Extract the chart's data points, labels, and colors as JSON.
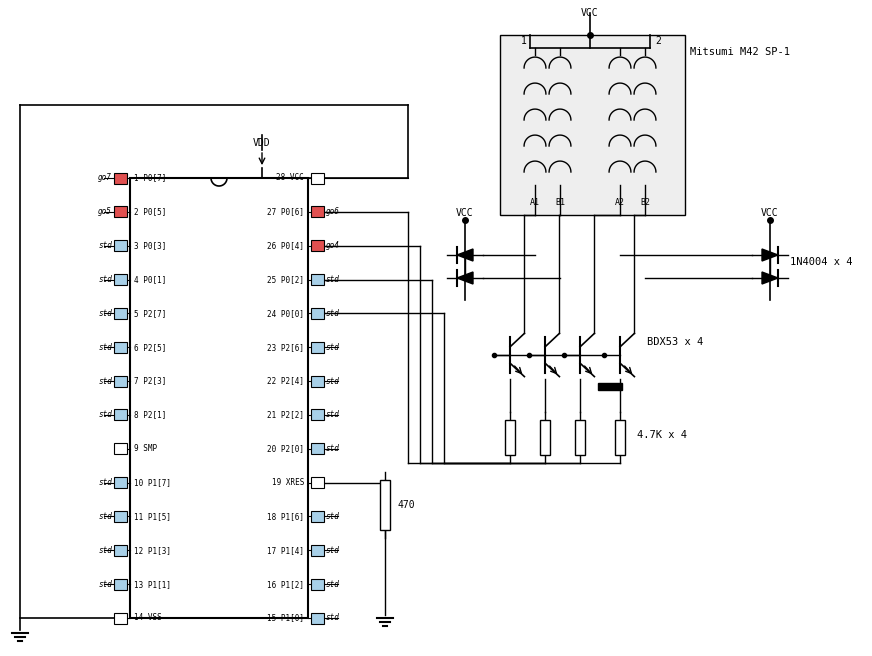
{
  "bg_color": "#ffffff",
  "ic_pins_left": [
    "1 P0[7]",
    "2 P0[5]",
    "3 P0[3]",
    "4 P0[1]",
    "5 P2[7]",
    "6 P2[5]",
    "7 P2[3]",
    "8 P2[1]",
    "9 SMP",
    "10 P1[7]",
    "11 P1[5]",
    "12 P1[3]",
    "13 P1[1]",
    "14 VSS"
  ],
  "ic_pins_right": [
    "28 VCC",
    "27 P0[6]",
    "26 P0[4]",
    "25 P0[2]",
    "24 P0[0]",
    "23 P2[6]",
    "22 P2[4]",
    "21 P2[2]",
    "20 P2[0]",
    "19 XRES",
    "18 P1[6]",
    "17 P1[4]",
    "16 P1[2]",
    "15 P1[0]"
  ],
  "pin_colors_left": [
    "red",
    "red",
    "blue",
    "blue",
    "blue",
    "blue",
    "blue",
    "blue",
    "white",
    "blue",
    "blue",
    "blue",
    "blue",
    "white"
  ],
  "pin_colors_right": [
    "white",
    "red",
    "red",
    "blue",
    "blue",
    "blue",
    "blue",
    "blue",
    "blue",
    "white",
    "blue",
    "blue",
    "blue",
    "blue"
  ],
  "pin_labels_left": [
    "go7",
    "go5",
    "std",
    "std",
    "std",
    "std",
    "std",
    "std",
    "",
    "std",
    "std",
    "std",
    "std",
    ""
  ],
  "pin_labels_right": [
    "",
    "go6",
    "go4",
    "std",
    "std",
    "std",
    "std",
    "std",
    "std",
    "",
    "std",
    "std",
    "std",
    "std"
  ]
}
